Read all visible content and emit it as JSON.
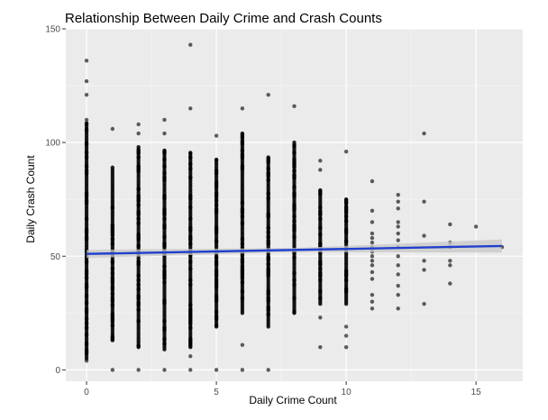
{
  "chart_data": {
    "type": "scatter",
    "title": "Relationship Between Daily Crime and Crash Counts",
    "xlabel": "Daily Crime Count",
    "ylabel": "Daily Crash Count",
    "xlim": [
      -0.8,
      16.8
    ],
    "ylim": [
      -5,
      150
    ],
    "x_ticks": [
      0,
      5,
      10,
      15
    ],
    "y_ticks": [
      0,
      50,
      100,
      150
    ],
    "grid": true,
    "point_color": "#000000",
    "trend_color": "#1f3fcc",
    "band_color": "#c7c7c7",
    "panel_color": "#ebebeb",
    "columns": [
      {
        "x": 0,
        "ranges": [
          [
            5,
            108
          ]
        ],
        "outliers": [
          4,
          110,
          121,
          127,
          136
        ]
      },
      {
        "x": 1,
        "ranges": [
          [
            13,
            89
          ]
        ],
        "outliers": [
          0,
          106
        ]
      },
      {
        "x": 2,
        "ranges": [
          [
            10,
            98
          ]
        ],
        "outliers": [
          0,
          104,
          108
        ]
      },
      {
        "x": 3,
        "ranges": [
          [
            9,
            96
          ]
        ],
        "outliers": [
          0,
          104,
          110
        ]
      },
      {
        "x": 4,
        "ranges": [
          [
            10,
            95
          ]
        ],
        "outliers": [
          0,
          6,
          115,
          143
        ]
      },
      {
        "x": 5,
        "ranges": [
          [
            19,
            92
          ]
        ],
        "outliers": [
          0,
          103
        ]
      },
      {
        "x": 6,
        "ranges": [
          [
            25,
            104
          ]
        ],
        "outliers": [
          0,
          11,
          115
        ]
      },
      {
        "x": 7,
        "ranges": [
          [
            19,
            93
          ]
        ],
        "outliers": [
          0,
          121
        ]
      },
      {
        "x": 8,
        "ranges": [
          [
            25,
            100
          ]
        ],
        "outliers": [
          116
        ]
      },
      {
        "x": 9,
        "ranges": [
          [
            29,
            79
          ]
        ],
        "outliers": [
          10,
          23,
          88,
          92
        ]
      },
      {
        "x": 10,
        "ranges": [
          [
            29,
            75
          ]
        ],
        "outliers": [
          10,
          15,
          19,
          96
        ]
      },
      {
        "x": 11,
        "points": [
          27,
          30,
          33,
          40,
          43,
          46,
          48,
          50,
          52,
          54,
          56,
          58,
          60,
          65,
          70,
          83
        ]
      },
      {
        "x": 12,
        "points": [
          27,
          33,
          37,
          42,
          46,
          50,
          54,
          57,
          60,
          63,
          65,
          71,
          74,
          77
        ]
      },
      {
        "x": 13,
        "points": [
          29,
          44,
          48,
          59,
          74,
          104
        ]
      },
      {
        "x": 14,
        "points": [
          38,
          46,
          48,
          54,
          56,
          64
        ]
      },
      {
        "x": 15,
        "points": [
          63
        ]
      },
      {
        "x": 16,
        "points": [
          54
        ]
      }
    ],
    "trend": {
      "x": [
        0,
        16
      ],
      "y": [
        51,
        54.5
      ],
      "band": [
        [
          0,
          49.2,
          52.8
        ],
        [
          8,
          51.8,
          53.6
        ],
        [
          16,
          51.6,
          57.4
        ]
      ]
    }
  }
}
